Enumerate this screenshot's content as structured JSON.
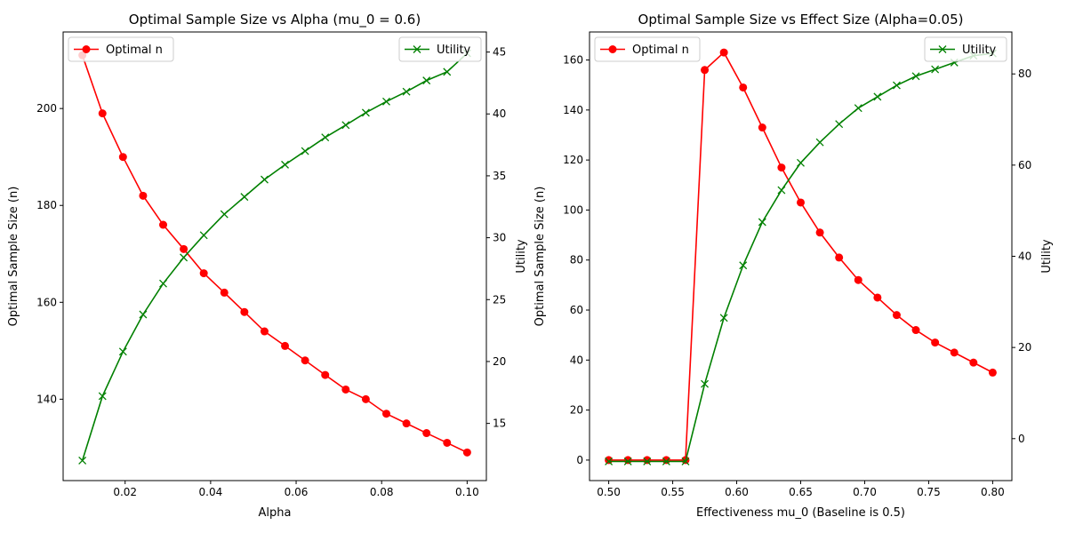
{
  "chart_data": [
    {
      "type": "line",
      "title": "Optimal Sample Size vs Alpha (mu_0 = 0.6)",
      "xlabel": "Alpha",
      "ylabel_left": "Optimal Sample Size (n)",
      "ylabel_right": "Utility",
      "xlim": [
        0.0055,
        0.1045
      ],
      "ylim_left": [
        123.2,
        215.8
      ],
      "ylim_right": [
        10.38,
        46.62
      ],
      "xticks": [
        "0.02",
        "0.04",
        "0.06",
        "0.08",
        "0.10"
      ],
      "xtick_values": [
        0.02,
        0.04,
        0.06,
        0.08,
        0.1
      ],
      "yticks_left": [
        140,
        160,
        180,
        200
      ],
      "yticks_right": [
        15,
        20,
        25,
        30,
        35,
        40,
        45
      ],
      "grid": false,
      "x": [
        0.01,
        0.0147,
        0.0195,
        0.0242,
        0.0289,
        0.0337,
        0.0384,
        0.0432,
        0.0479,
        0.0526,
        0.0574,
        0.0621,
        0.0668,
        0.0716,
        0.0763,
        0.0811,
        0.0858,
        0.0905,
        0.0953,
        0.1
      ],
      "series": [
        {
          "name": "Optimal n",
          "axis": "left",
          "color": "#ff0000",
          "marker": "circle",
          "values": [
            211,
            199,
            190,
            182,
            176,
            171,
            166,
            162,
            158,
            154,
            151,
            148,
            145,
            142,
            140,
            137,
            135,
            133,
            131,
            129
          ]
        },
        {
          "name": "Utility",
          "axis": "right",
          "color": "#008000",
          "marker": "x",
          "values": [
            12.0,
            17.2,
            20.8,
            23.8,
            26.3,
            28.4,
            30.2,
            31.9,
            33.3,
            34.7,
            35.9,
            37.0,
            38.1,
            39.1,
            40.1,
            41.0,
            41.8,
            42.7,
            43.4,
            44.9
          ]
        }
      ],
      "legend_left": {
        "label": "Optimal n",
        "placement": "upper-left"
      },
      "legend_right": {
        "label": "Utility",
        "placement": "upper-right"
      }
    },
    {
      "type": "line",
      "title": "Optimal Sample Size vs Effect Size (Alpha=0.05)",
      "xlabel": "Effectiveness mu_0 (Baseline is 0.5)",
      "ylabel_left": "Optimal Sample Size (n)",
      "ylabel_right": "Utility",
      "xlim": [
        0.485,
        0.815
      ],
      "ylim_left": [
        -8.2,
        171.2
      ],
      "ylim_right": [
        -9.2,
        89.2
      ],
      "xticks": [
        "0.50",
        "0.55",
        "0.60",
        "0.65",
        "0.70",
        "0.75",
        "0.80"
      ],
      "xtick_values": [
        0.5,
        0.55,
        0.6,
        0.65,
        0.7,
        0.75,
        0.8
      ],
      "yticks_left": [
        0,
        20,
        40,
        60,
        80,
        100,
        120,
        140,
        160
      ],
      "yticks_right": [
        0,
        20,
        40,
        60,
        80
      ],
      "grid": false,
      "x": [
        0.5,
        0.515,
        0.53,
        0.545,
        0.56,
        0.575,
        0.59,
        0.605,
        0.62,
        0.635,
        0.65,
        0.665,
        0.68,
        0.695,
        0.71,
        0.725,
        0.74,
        0.755,
        0.77,
        0.785,
        0.8
      ],
      "series": [
        {
          "name": "Optimal n",
          "axis": "left",
          "color": "#ff0000",
          "marker": "circle",
          "values": [
            0,
            0,
            0,
            0,
            0,
            156,
            163,
            149,
            133,
            117,
            103,
            91,
            81,
            72,
            65,
            58,
            52,
            47,
            43,
            39,
            35
          ]
        },
        {
          "name": "Utility",
          "axis": "right",
          "color": "#008000",
          "marker": "x",
          "values": [
            -5,
            -5,
            -5,
            -5,
            -5,
            12,
            26.5,
            38,
            47.5,
            54.5,
            60.5,
            65,
            69,
            72.5,
            75,
            77.5,
            79.5,
            81,
            82.5,
            84,
            84.5
          ]
        }
      ],
      "legend_left": {
        "label": "Optimal n",
        "placement": "upper-left"
      },
      "legend_right": {
        "label": "Utility",
        "placement": "upper-right"
      }
    }
  ]
}
